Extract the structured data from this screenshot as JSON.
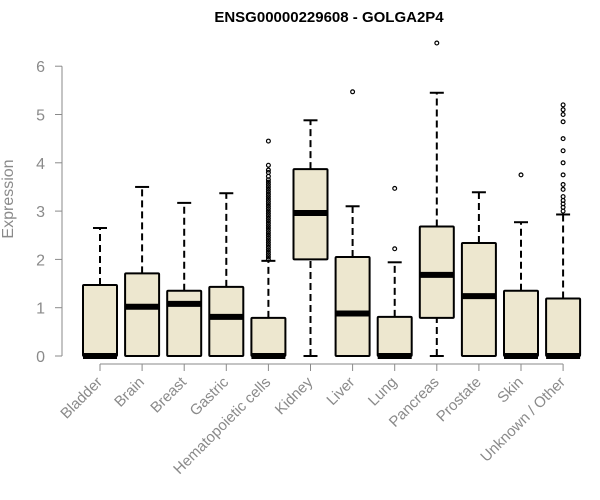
{
  "chart_data": {
    "type": "boxplot",
    "title": "ENSG00000229608 - GOLGA2P4",
    "ylabel": "Expression",
    "xlabel": "",
    "ylim": [
      0,
      6.5
    ],
    "yticks": [
      0,
      1,
      2,
      3,
      4,
      5,
      6
    ],
    "grid": false,
    "colors": {
      "box_fill": "#ede7cf",
      "stroke": "#000000",
      "axis": "#8a8a8a"
    },
    "categories": [
      "Bladder",
      "Brain",
      "Breast",
      "Gastric",
      "Hematopoietic cells",
      "Kidney",
      "Liver",
      "Lung",
      "Pancreas",
      "Prostate",
      "Skin",
      "Unknown / Other"
    ],
    "boxes": [
      {
        "whisker_low": 0,
        "q1": 0,
        "median": 0,
        "q3": 1.47,
        "whisker_high": 2.65,
        "outliers": []
      },
      {
        "whisker_low": 0,
        "q1": 0,
        "median": 1.02,
        "q3": 1.71,
        "whisker_high": 3.5,
        "outliers": []
      },
      {
        "whisker_low": 0,
        "q1": 0,
        "median": 1.08,
        "q3": 1.35,
        "whisker_high": 3.17,
        "outliers": []
      },
      {
        "whisker_low": 0,
        "q1": 0,
        "median": 0.81,
        "q3": 1.43,
        "whisker_high": 3.37,
        "outliers": []
      },
      {
        "whisker_low": 0,
        "q1": 0,
        "median": 0,
        "q3": 0.79,
        "whisker_high": 1.97,
        "outliers": [
          2.0,
          2.05,
          2.1,
          2.15,
          2.2,
          2.25,
          2.3,
          2.35,
          2.4,
          2.45,
          2.5,
          2.55,
          2.6,
          2.65,
          2.7,
          2.75,
          2.8,
          2.85,
          2.9,
          2.95,
          3.0,
          3.05,
          3.1,
          3.15,
          3.2,
          3.25,
          3.3,
          3.35,
          3.4,
          3.45,
          3.5,
          3.55,
          3.6,
          3.65,
          3.72,
          3.8,
          3.85,
          3.95,
          4.45
        ]
      },
      {
        "whisker_low": 0,
        "q1": 2.0,
        "median": 2.96,
        "q3": 3.87,
        "whisker_high": 4.88,
        "outliers": []
      },
      {
        "whisker_low": 0,
        "q1": 0,
        "median": 0.88,
        "q3": 2.05,
        "whisker_high": 3.1,
        "outliers": [
          5.47
        ]
      },
      {
        "whisker_low": 0,
        "q1": 0,
        "median": 0,
        "q3": 0.81,
        "whisker_high": 1.94,
        "outliers": [
          2.22,
          3.47
        ]
      },
      {
        "whisker_low": 0,
        "q1": 0.79,
        "median": 1.68,
        "q3": 2.68,
        "whisker_high": 5.45,
        "outliers": [
          6.48
        ]
      },
      {
        "whisker_low": 0,
        "q1": 0,
        "median": 1.24,
        "q3": 2.34,
        "whisker_high": 3.39,
        "outliers": []
      },
      {
        "whisker_low": 0,
        "q1": 0,
        "median": 0,
        "q3": 1.35,
        "whisker_high": 2.77,
        "outliers": [
          3.75
        ]
      },
      {
        "whisker_low": 0,
        "q1": 0,
        "median": 0,
        "q3": 1.19,
        "whisker_high": 2.93,
        "outliers": [
          3.0,
          3.08,
          3.15,
          3.22,
          3.3,
          3.45,
          3.55,
          3.75,
          4.0,
          4.25,
          4.5,
          4.85,
          5.0,
          5.1,
          5.2
        ]
      }
    ]
  }
}
